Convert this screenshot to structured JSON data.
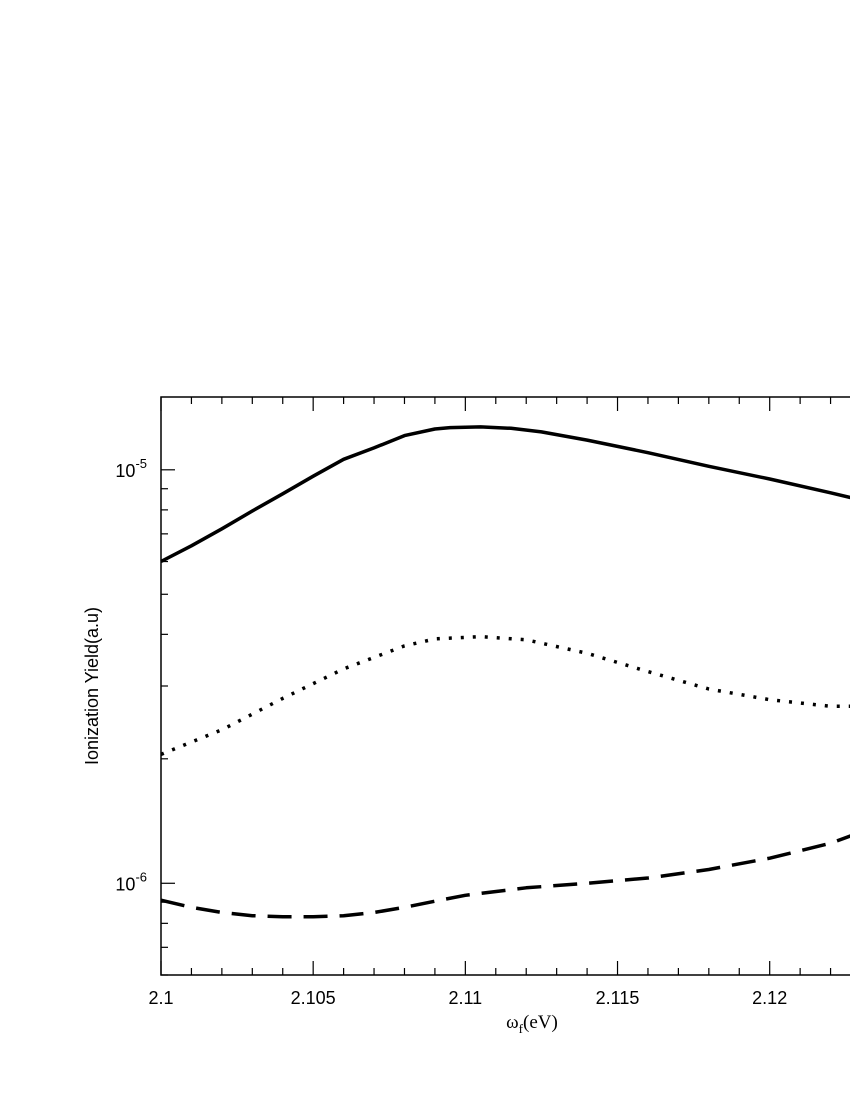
{
  "chart_data": {
    "type": "line",
    "xlabel": {
      "symbol": "ω",
      "subscript": "f",
      "unit": "(eV)"
    },
    "ylabel": "Ionization Yield(a.u)",
    "y_scale": "log",
    "xlim": [
      2.1,
      2.123
    ],
    "ylim": [
      6e-07,
      1.5e-05
    ],
    "grid": false,
    "x_ticks": [
      {
        "value": 2.1,
        "label": "2.1"
      },
      {
        "value": 2.105,
        "label": "2.105"
      },
      {
        "value": 2.11,
        "label": "2.11"
      },
      {
        "value": 2.115,
        "label": "2.115"
      },
      {
        "value": 2.12,
        "label": "2.12"
      }
    ],
    "y_ticks": [
      {
        "value": 1e-06,
        "base": "10",
        "exp": "-6"
      },
      {
        "value": 1e-05,
        "base": "10",
        "exp": "-5"
      }
    ],
    "series": [
      {
        "style": "solid",
        "x": [
          2.1,
          2.101,
          2.102,
          2.103,
          2.104,
          2.105,
          2.106,
          2.107,
          2.108,
          2.109,
          2.1095,
          2.1105,
          2.1115,
          2.1125,
          2.114,
          2.116,
          2.118,
          2.12,
          2.122,
          2.123
        ],
        "y": [
          6e-06,
          6.55e-06,
          7.2e-06,
          7.95e-06,
          8.75e-06,
          9.65e-06,
          1.06e-05,
          1.13e-05,
          1.21e-05,
          1.255e-05,
          1.265e-05,
          1.27e-05,
          1.26e-05,
          1.235e-05,
          1.18e-05,
          1.1e-05,
          1.02e-05,
          9.5e-06,
          8.8e-06,
          8.45e-06
        ]
      },
      {
        "style": "dotted",
        "x": [
          2.1,
          2.102,
          2.104,
          2.106,
          2.108,
          2.109,
          2.1105,
          2.112,
          2.114,
          2.116,
          2.118,
          2.12,
          2.122,
          2.123
        ],
        "y": [
          2.05e-06,
          2.35e-06,
          2.8e-06,
          3.3e-06,
          3.75e-06,
          3.9e-06,
          3.95e-06,
          3.88e-06,
          3.6e-06,
          3.25e-06,
          2.95e-06,
          2.78e-06,
          2.68e-06,
          2.68e-06
        ]
      },
      {
        "style": "dashed",
        "x": [
          2.1,
          2.101,
          2.102,
          2.103,
          2.104,
          2.105,
          2.106,
          2.107,
          2.108,
          2.109,
          2.11,
          2.112,
          2.114,
          2.116,
          2.118,
          2.12,
          2.122,
          2.123
        ],
        "y": [
          9.1e-07,
          8.75e-07,
          8.5e-07,
          8.35e-07,
          8.3e-07,
          8.3e-07,
          8.35e-07,
          8.5e-07,
          8.75e-07,
          9.05e-07,
          9.35e-07,
          9.75e-07,
          1e-06,
          1.03e-06,
          1.08e-06,
          1.15e-06,
          1.25e-06,
          1.33e-06
        ]
      }
    ]
  }
}
